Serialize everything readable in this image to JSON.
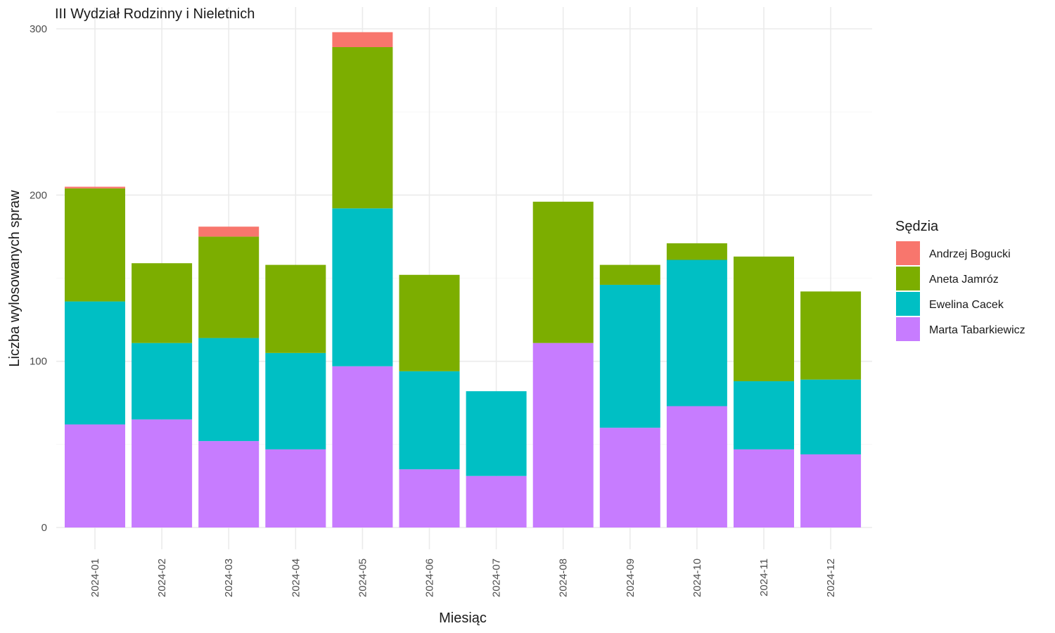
{
  "chart_data": {
    "type": "bar",
    "stacked": true,
    "title": "III Wydział Rodzinny i Nieletnich",
    "xlabel": "Miesiąc",
    "ylabel": "Liczba wylosowanych spraw",
    "ylim": [
      0,
      300
    ],
    "yticks": [
      0,
      100,
      200,
      300
    ],
    "grid": true,
    "legend": {
      "title": "Sędzia",
      "position": "right"
    },
    "categories": [
      "2024-01",
      "2024-02",
      "2024-03",
      "2024-04",
      "2024-05",
      "2024-06",
      "2024-07",
      "2024-08",
      "2024-09",
      "2024-10",
      "2024-11",
      "2024-12"
    ],
    "series": [
      {
        "name": "Marta Tabarkiewicz",
        "color": "#C77CFF",
        "values": [
          62,
          65,
          52,
          47,
          97,
          35,
          31,
          111,
          60,
          73,
          47,
          44
        ]
      },
      {
        "name": "Ewelina Cacek",
        "color": "#00BFC4",
        "values": [
          74,
          46,
          62,
          58,
          95,
          59,
          51,
          0,
          86,
          88,
          41,
          45
        ]
      },
      {
        "name": "Aneta Jamróz",
        "color": "#7CAE00",
        "values": [
          68,
          48,
          61,
          53,
          97,
          58,
          0,
          85,
          12,
          10,
          75,
          53
        ]
      },
      {
        "name": "Andrzej Bogucki",
        "color": "#F8766D",
        "values": [
          1,
          0,
          6,
          0,
          9,
          0,
          0,
          0,
          0,
          0,
          0,
          0
        ]
      }
    ],
    "legend_order": [
      "Andrzej Bogucki",
      "Aneta Jamróz",
      "Ewelina Cacek",
      "Marta Tabarkiewicz"
    ]
  }
}
